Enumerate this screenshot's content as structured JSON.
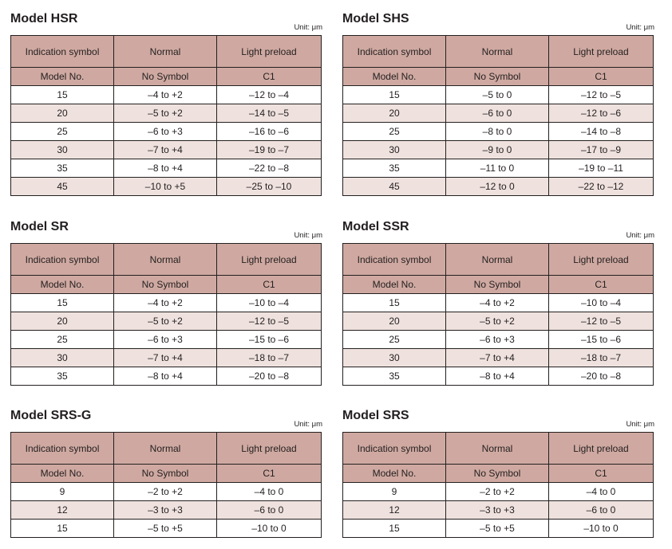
{
  "tables": [
    {
      "title": "Model HSR",
      "unit": "Unit: μm",
      "header": {
        "indication": "Indication symbol",
        "normal": "Normal",
        "light": "Light preload"
      },
      "subheader": {
        "model": "Model No.",
        "normal": "No Symbol",
        "light": "C1"
      },
      "rows": [
        {
          "model": "15",
          "normal": "–4 to +2",
          "light": "–12 to –4"
        },
        {
          "model": "20",
          "normal": "–5 to +2",
          "light": "–14 to –5"
        },
        {
          "model": "25",
          "normal": "–6 to +3",
          "light": "–16 to –6"
        },
        {
          "model": "30",
          "normal": "–7 to +4",
          "light": "–19 to –7"
        },
        {
          "model": "35",
          "normal": "–8 to +4",
          "light": "–22 to –8"
        },
        {
          "model": "45",
          "normal": "–10 to +5",
          "light": "–25 to –10"
        }
      ]
    },
    {
      "title": "Model SHS",
      "unit": "Unit: μm",
      "header": {
        "indication": "Indication symbol",
        "normal": "Normal",
        "light": "Light preload"
      },
      "subheader": {
        "model": "Model No.",
        "normal": "No Symbol",
        "light": "C1"
      },
      "rows": [
        {
          "model": "15",
          "normal": "–5 to 0",
          "light": "–12 to –5"
        },
        {
          "model": "20",
          "normal": "–6 to 0",
          "light": "–12 to –6"
        },
        {
          "model": "25",
          "normal": "–8 to 0",
          "light": "–14 to –8"
        },
        {
          "model": "30",
          "normal": "–9 to 0",
          "light": "–17 to –9"
        },
        {
          "model": "35",
          "normal": "–11 to 0",
          "light": "–19 to –11"
        },
        {
          "model": "45",
          "normal": "–12 to 0",
          "light": "–22 to –12"
        }
      ]
    },
    {
      "title": "Model SR",
      "unit": "Unit: μm",
      "header": {
        "indication": "Indication symbol",
        "normal": "Normal",
        "light": "Light preload"
      },
      "subheader": {
        "model": "Model No.",
        "normal": "No Symbol",
        "light": "C1"
      },
      "rows": [
        {
          "model": "15",
          "normal": "–4 to +2",
          "light": "–10 to –4"
        },
        {
          "model": "20",
          "normal": "–5 to +2",
          "light": "–12 to –5"
        },
        {
          "model": "25",
          "normal": "–6 to +3",
          "light": "–15 to –6"
        },
        {
          "model": "30",
          "normal": "–7 to +4",
          "light": "–18 to –7"
        },
        {
          "model": "35",
          "normal": "–8 to +4",
          "light": "–20 to –8"
        }
      ]
    },
    {
      "title": "Model SSR",
      "unit": "Unit: μm",
      "header": {
        "indication": "Indication symbol",
        "normal": "Normal",
        "light": "Light preload"
      },
      "subheader": {
        "model": "Model No.",
        "normal": "No Symbol",
        "light": "C1"
      },
      "rows": [
        {
          "model": "15",
          "normal": "–4 to +2",
          "light": "–10 to –4"
        },
        {
          "model": "20",
          "normal": "–5 to +2",
          "light": "–12 to –5"
        },
        {
          "model": "25",
          "normal": "–6 to +3",
          "light": "–15 to –6"
        },
        {
          "model": "30",
          "normal": "–7 to +4",
          "light": "–18 to –7"
        },
        {
          "model": "35",
          "normal": "–8 to +4",
          "light": "–20 to –8"
        }
      ]
    },
    {
      "title": "Model SRS-G",
      "unit": "Unit: μm",
      "header": {
        "indication": "Indication symbol",
        "normal": "Normal",
        "light": "Light preload"
      },
      "subheader": {
        "model": "Model No.",
        "normal": "No Symbol",
        "light": "C1"
      },
      "rows": [
        {
          "model": "9",
          "normal": "–2 to +2",
          "light": "–4 to 0"
        },
        {
          "model": "12",
          "normal": "–3 to +3",
          "light": "–6 to 0"
        },
        {
          "model": "15",
          "normal": "–5 to +5",
          "light": "–10 to 0"
        }
      ]
    },
    {
      "title": "Model SRS",
      "unit": "Unit: μm",
      "header": {
        "indication": "Indication symbol",
        "normal": "Normal",
        "light": "Light preload"
      },
      "subheader": {
        "model": "Model No.",
        "normal": "No Symbol",
        "light": "C1"
      },
      "rows": [
        {
          "model": "9",
          "normal": "–2 to +2",
          "light": "–4 to 0"
        },
        {
          "model": "12",
          "normal": "–3 to +3",
          "light": "–6 to 0"
        },
        {
          "model": "15",
          "normal": "–5 to +5",
          "light": "–10 to 0"
        }
      ]
    }
  ]
}
